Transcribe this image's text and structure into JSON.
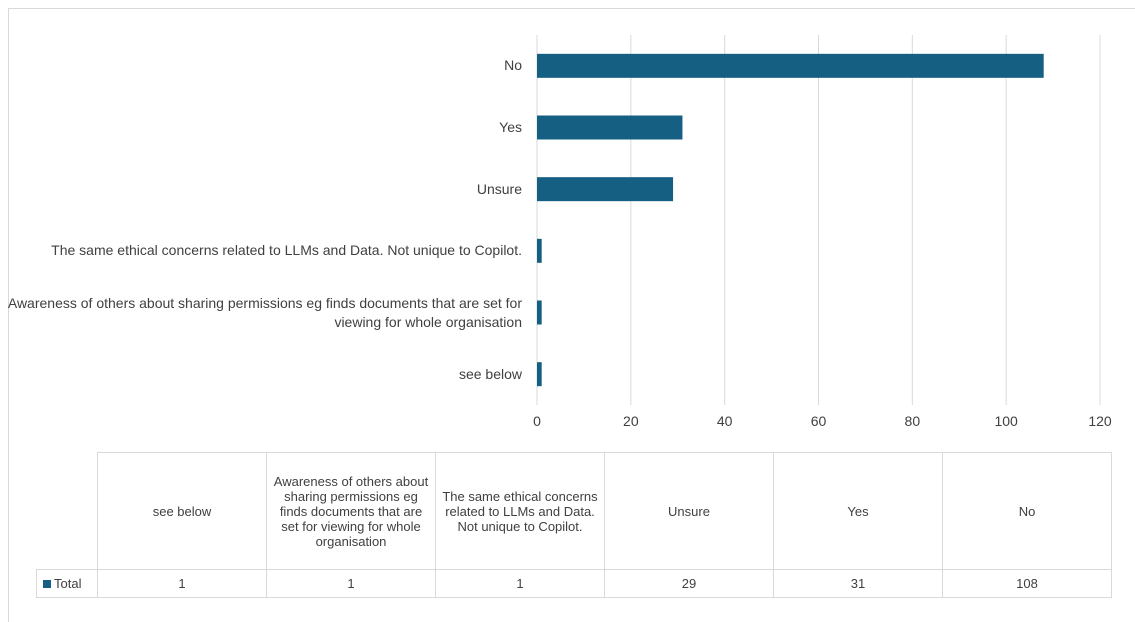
{
  "chart_data": {
    "type": "bar",
    "orientation": "horizontal",
    "categories": [
      "No",
      "Yes",
      "Unsure",
      "The same ethical concerns related to LLMs and Data.  Not unique to Copilot.",
      "Awareness of others about sharing permissions eg finds documents that are set for viewing for whole organisation",
      "see below"
    ],
    "series": [
      {
        "name": "Total",
        "values": [
          108,
          31,
          29,
          1,
          1,
          1
        ]
      }
    ],
    "xlim": [
      0,
      120
    ],
    "xticks": [
      "0",
      "20",
      "40",
      "60",
      "80",
      "100",
      "120"
    ],
    "grid": "vertical",
    "bar_color": "#156082",
    "gridline_color": "#d9d9d9"
  },
  "table": {
    "headers": [
      "see below",
      "Awareness of others about sharing permissions eg finds documents that are set for viewing for whole organisation",
      "The same ethical concerns related to LLMs and Data.  Not unique to Copilot.",
      "Unsure",
      "Yes",
      "No"
    ],
    "row_label": "Total",
    "values": [
      "1",
      "1",
      "1",
      "29",
      "31",
      "108"
    ]
  }
}
